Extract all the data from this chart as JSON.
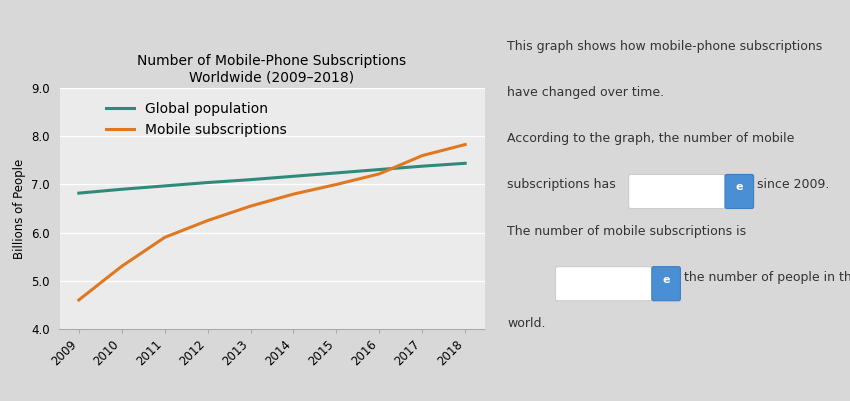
{
  "title_line1": "Number of Mobile-Phone Subscriptions",
  "title_line2": "Worldwide (2009–2018)",
  "ylabel": "Billions of People",
  "years": [
    2009,
    2010,
    2011,
    2012,
    2013,
    2014,
    2015,
    2016,
    2017,
    2018
  ],
  "global_population": [
    6.82,
    6.9,
    6.97,
    7.04,
    7.1,
    7.17,
    7.24,
    7.31,
    7.38,
    7.44
  ],
  "mobile_subscriptions": [
    4.6,
    5.3,
    5.9,
    6.25,
    6.55,
    6.8,
    7.0,
    7.22,
    7.6,
    7.83
  ],
  "population_color": "#2e8b7a",
  "mobile_color": "#e07820",
  "ylim": [
    4.0,
    9.0
  ],
  "yticks": [
    4.0,
    5.0,
    6.0,
    7.0,
    8.0,
    9.0
  ],
  "legend_global": "Global population",
  "legend_mobile": "Mobile subscriptions",
  "bg_color": "#d8d8d8",
  "chart_face_color": "#ebebeb",
  "title_fontsize": 10,
  "axis_fontsize": 8.5,
  "legend_fontsize": 10,
  "text_color": "#333333"
}
